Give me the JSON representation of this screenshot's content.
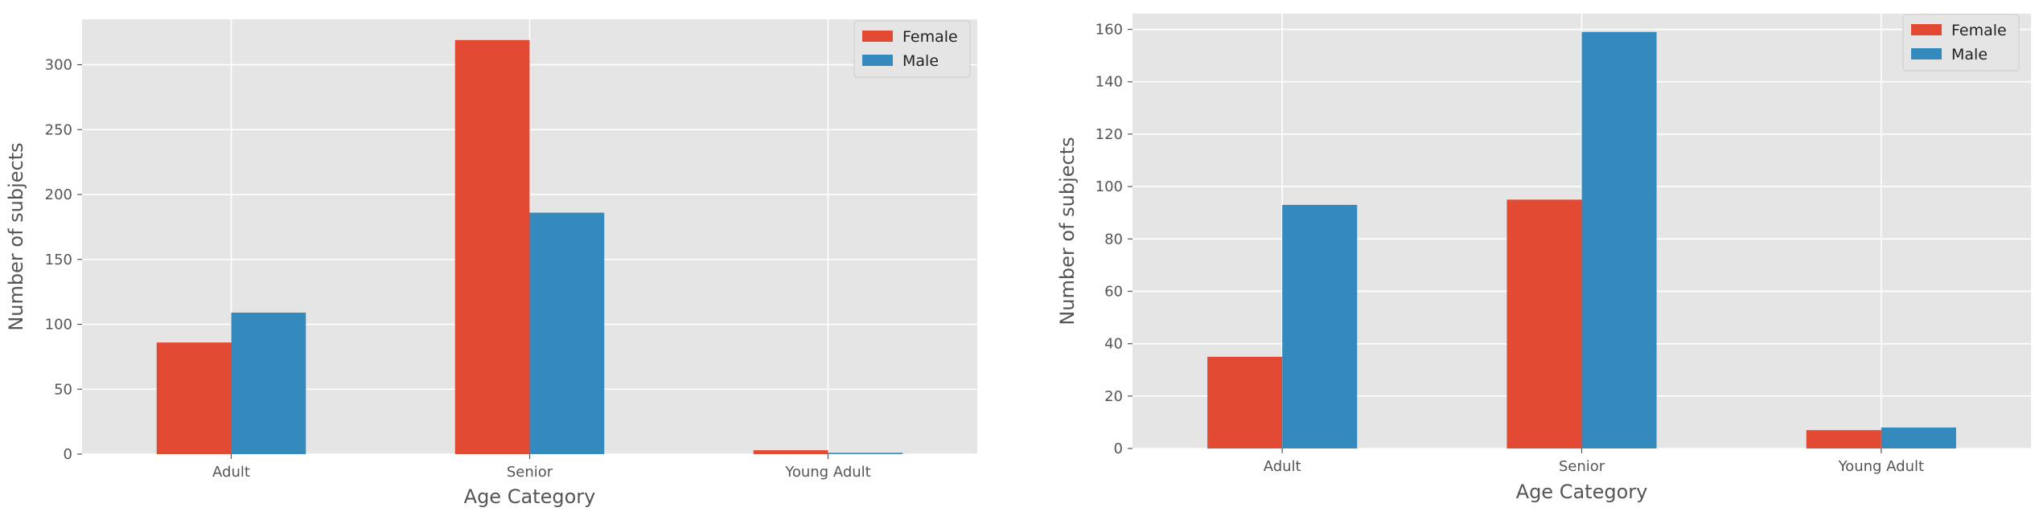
{
  "colors": {
    "plot_background": "#e5e5e5",
    "grid": "#ffffff",
    "Female": "#e24a33",
    "Male": "#348abd",
    "text": "#555555"
  },
  "chart_data": [
    {
      "type": "bar",
      "categories": [
        "Adult",
        "Senior",
        "Young Adult"
      ],
      "series": [
        {
          "name": "Female",
          "values": [
            86,
            319,
            3
          ]
        },
        {
          "name": "Male",
          "values": [
            109,
            186,
            1
          ]
        }
      ],
      "title": "",
      "xlabel": "Age Category",
      "ylabel": "Number of subjects",
      "ylim": [
        0,
        335
      ],
      "yticks": [
        0,
        50,
        100,
        150,
        200,
        250,
        300
      ],
      "grid": true,
      "legend": "top-right"
    },
    {
      "type": "bar",
      "categories": [
        "Adult",
        "Senior",
        "Young Adult"
      ],
      "series": [
        {
          "name": "Female",
          "values": [
            35,
            95,
            7
          ]
        },
        {
          "name": "Male",
          "values": [
            93,
            159,
            8
          ]
        }
      ],
      "title": "",
      "xlabel": "Age Category",
      "ylabel": "Number of subjects",
      "ylim": [
        0,
        166
      ],
      "yticks": [
        0,
        20,
        40,
        60,
        80,
        100,
        120,
        140,
        160
      ],
      "grid": true,
      "legend": "top-right"
    }
  ]
}
